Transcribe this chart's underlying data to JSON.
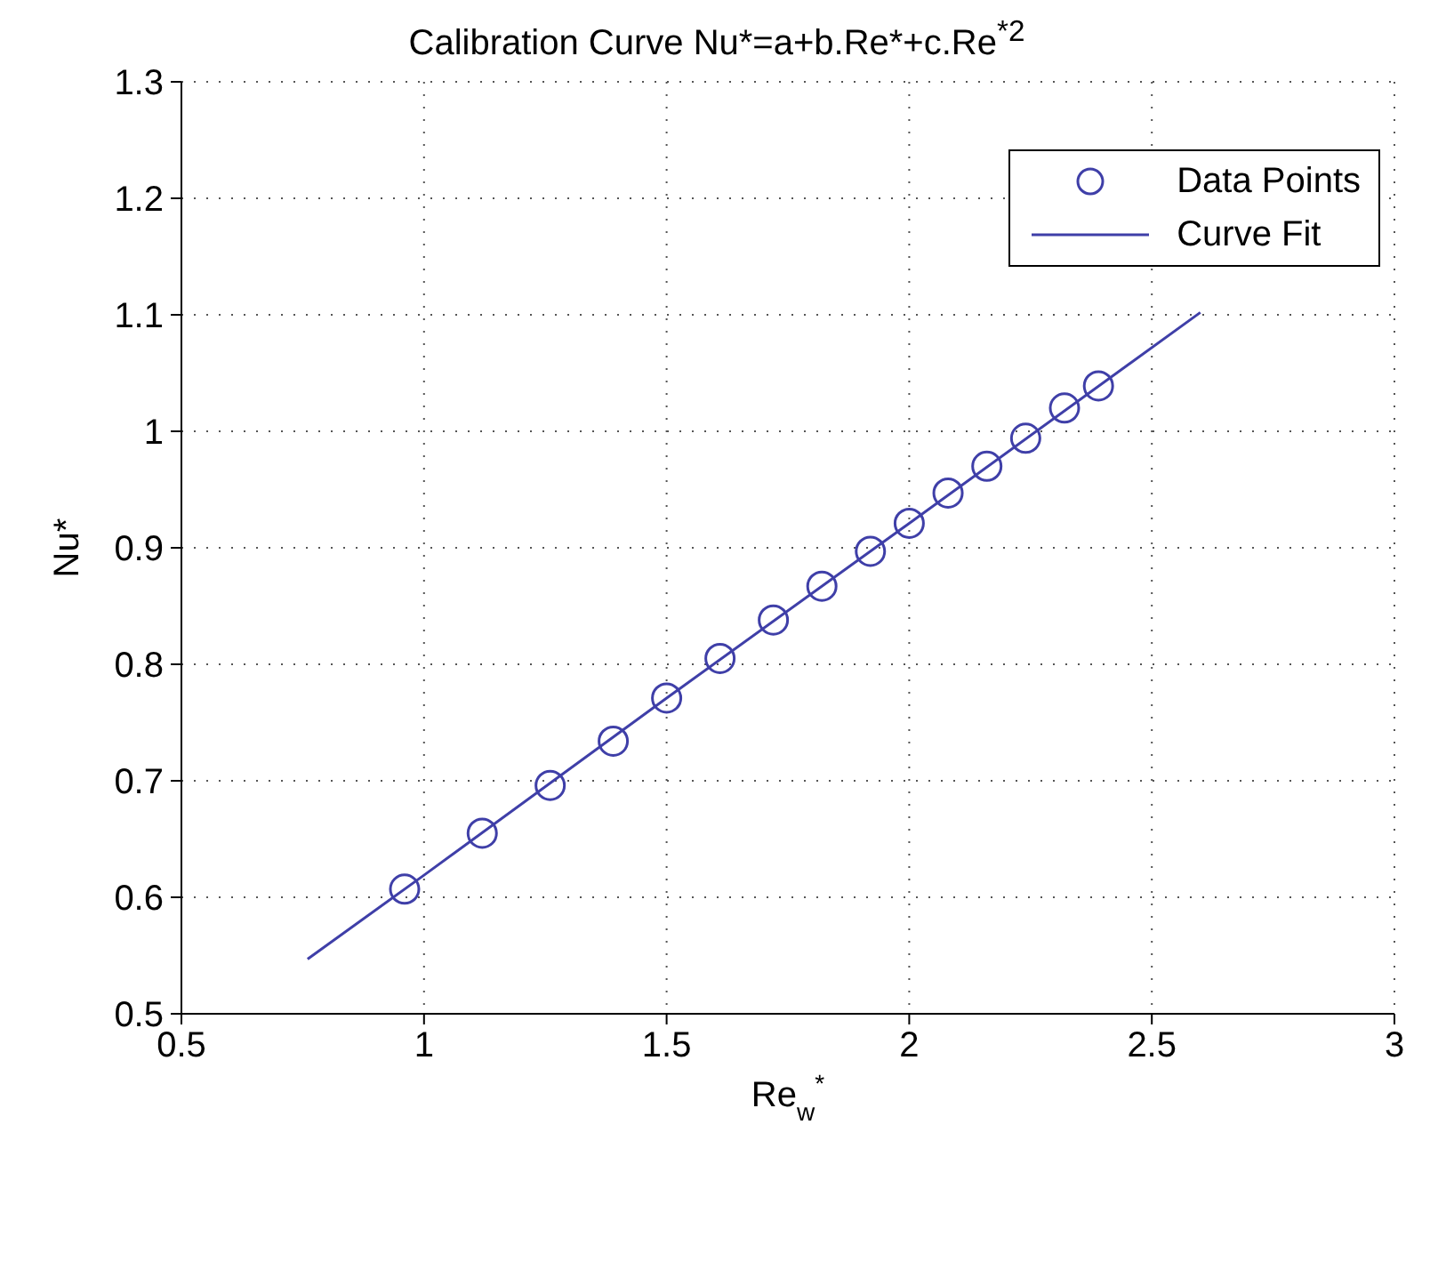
{
  "chart_data": {
    "type": "scatter",
    "title": "Calibration Curve Nu*=a+b.Re*+c.Re$^{*2}$",
    "xlabel": "Re$_{w}$$^{*}$",
    "ylabel": "Nu*",
    "series": [
      {
        "name": "Data Points",
        "type": "scatter",
        "marker": "circle",
        "color": "#3f3fa8",
        "x": [
          0.96,
          1.12,
          1.26,
          1.39,
          1.5,
          1.61,
          1.72,
          1.82,
          1.92,
          2.0,
          2.08,
          2.16,
          2.24,
          2.32,
          2.39
        ],
        "values": [
          0.607,
          0.655,
          0.696,
          0.734,
          0.771,
          0.805,
          0.838,
          0.867,
          0.897,
          0.921,
          0.947,
          0.97,
          0.994,
          1.02,
          1.039
        ]
      },
      {
        "name": "Curve Fit",
        "type": "line",
        "marker": "none",
        "line_style": "solid",
        "color": "#3f3fa8",
        "x": [
          0.76,
          1.0,
          1.5,
          2.0,
          2.6
        ],
        "values": [
          0.547,
          0.619,
          0.771,
          0.921,
          1.102
        ]
      }
    ],
    "xlim": [
      0.5,
      3
    ],
    "xticks": [
      0.5,
      1,
      1.5,
      2,
      2.5,
      3
    ],
    "ylim": [
      0.5,
      1.3
    ],
    "yticks": [
      0.5,
      0.6,
      0.7,
      0.8,
      0.9,
      1,
      1.1,
      1.2,
      1.3
    ],
    "grid": true,
    "legend": "top right"
  }
}
